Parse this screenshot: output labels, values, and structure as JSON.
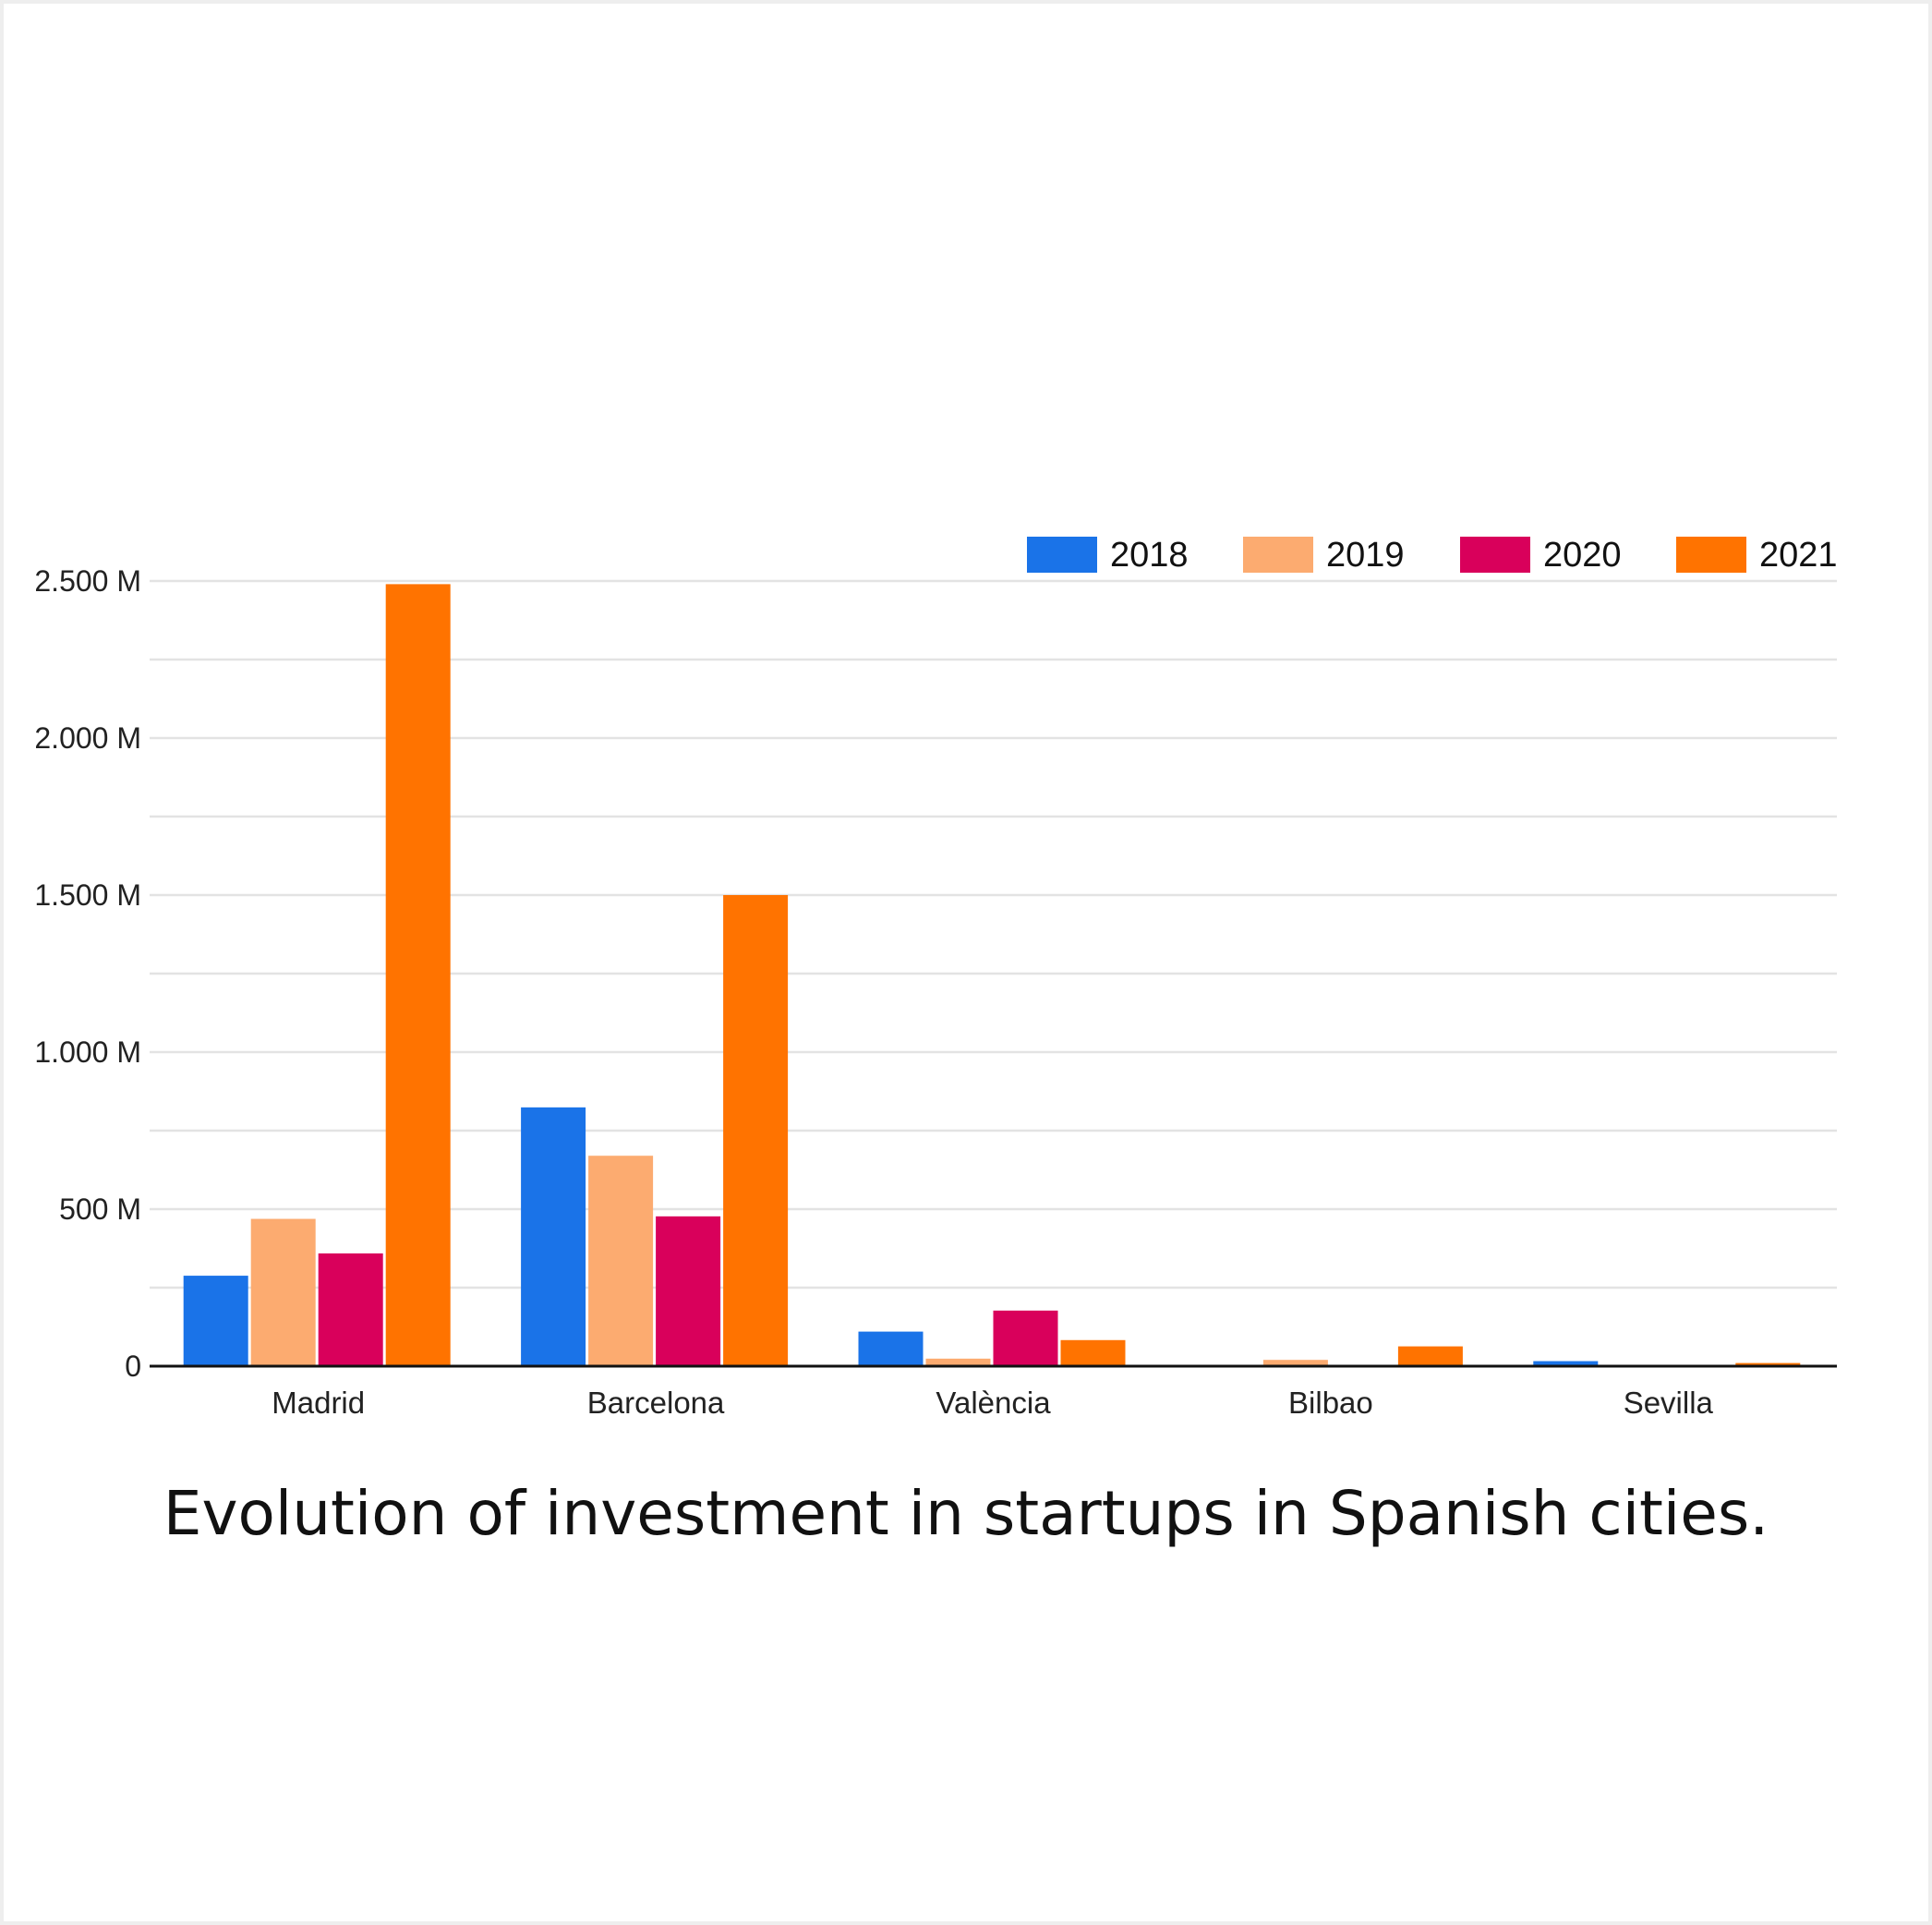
{
  "chart_data": {
    "type": "bar",
    "title": "Evolution of investment in startups in Spanish cities.",
    "categories": [
      "Madrid",
      "Barcelona",
      "València",
      "Bilbao",
      "Sevilla"
    ],
    "series": [
      {
        "name": "2018",
        "color": "#1a73e8",
        "values": [
          288,
          824,
          110,
          0,
          16
        ]
      },
      {
        "name": "2019",
        "color": "#fcab70",
        "values": [
          469,
          670,
          24,
          20,
          0
        ]
      },
      {
        "name": "2020",
        "color": "#d9005b",
        "values": [
          359,
          477,
          177,
          0,
          0
        ]
      },
      {
        "name": "2021",
        "color": "#ff7300",
        "values": [
          2490,
          1500,
          83,
          63,
          10
        ]
      }
    ],
    "ylim": [
      0,
      2500
    ],
    "yticks": [
      0,
      500,
      1000,
      1500,
      2000,
      2500
    ],
    "ytick_labels": [
      "0",
      "500 M",
      "1.000 M",
      "1.500 M",
      "2.000 M",
      "2.500 M"
    ],
    "unit": "M",
    "grid": true,
    "legend": "top-right",
    "xlabel": "",
    "ylabel": ""
  }
}
